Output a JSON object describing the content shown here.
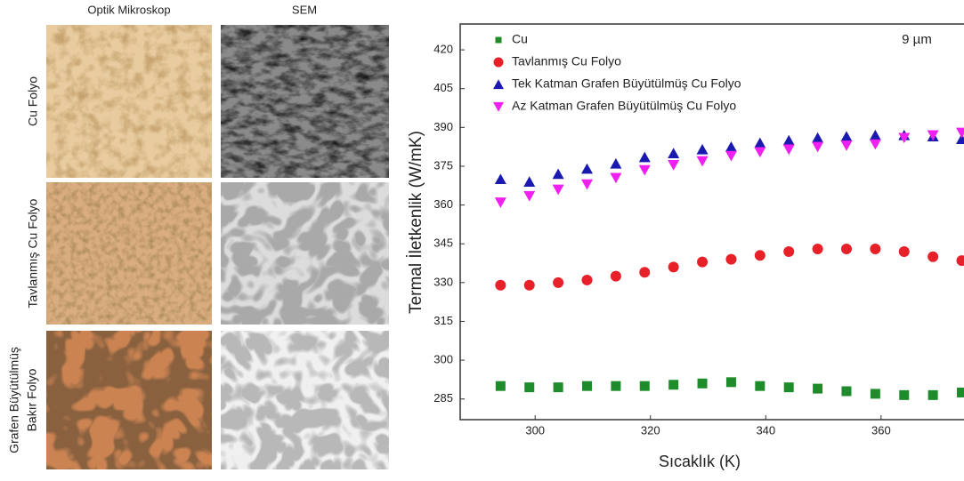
{
  "micrographs": {
    "columns": [
      "Optik Mikroskop",
      "SEM"
    ],
    "rows": [
      [
        "Cu Folyo"
      ],
      [
        "Tavlanmış Cu Folyo"
      ],
      [
        "Grafen Büyütülmüş",
        "Bakır Folyo"
      ]
    ]
  },
  "chart_data": {
    "type": "scatter",
    "xlabel": "Sıcaklık (K)",
    "ylabel": "Termal İletkenlik (W/mK)",
    "annotation": "9 µm",
    "x": [
      294,
      299,
      304,
      309,
      314,
      319,
      324,
      329,
      334,
      339,
      344,
      349,
      354,
      359,
      364,
      369,
      374
    ],
    "series": [
      {
        "name": "Cu",
        "color": "#1e8c2a",
        "marker": "square",
        "values": [
          290,
          289.5,
          289.5,
          290,
          290,
          290,
          290.5,
          291,
          291.5,
          290,
          289.5,
          289,
          288,
          287,
          286.5,
          286.5,
          287.5
        ]
      },
      {
        "name": "Tavlanmış Cu Folyo",
        "color": "#e8202a",
        "marker": "circle",
        "values": [
          329,
          329,
          330,
          331,
          332.5,
          334,
          336,
          338,
          339,
          340.5,
          342,
          343,
          343,
          343,
          342,
          340,
          338.5
        ]
      },
      {
        "name": "Tek Katman Grafen Büyütülmüş Cu Folyo",
        "color": "#1a1ab0",
        "marker": "triangle-up",
        "values": [
          370,
          369,
          372,
          374,
          376,
          378.5,
          380,
          381.5,
          382.5,
          384,
          385,
          386,
          386.5,
          387,
          387,
          386.5,
          385.5
        ]
      },
      {
        "name": "Az Katman Grafen Büyütülmüş Cu Folyo",
        "color": "#f020f0",
        "marker": "triangle-down",
        "values": [
          361,
          363.5,
          366,
          368,
          370.5,
          373.5,
          375.5,
          377,
          379,
          380.5,
          381.5,
          382.5,
          383,
          383.5,
          386,
          387,
          388
        ]
      }
    ],
    "xlim": [
      287,
      375
    ],
    "xticks": [
      300,
      320,
      340,
      360
    ],
    "ylim": [
      277,
      430
    ],
    "yticks": [
      285,
      300,
      315,
      330,
      345,
      360,
      375,
      390,
      405,
      420
    ],
    "legend": "upper left"
  }
}
